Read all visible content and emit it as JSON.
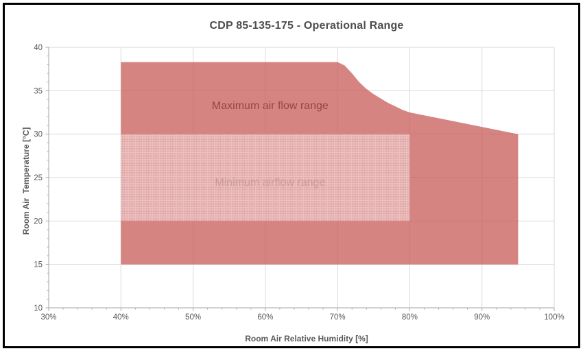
{
  "frame": {
    "border_color": "#000000",
    "background": "#ffffff"
  },
  "chart_data": {
    "type": "area",
    "title": "CDP 85-135-175 - Operational Range",
    "xlabel": "Room Air Relative Humidity [%]",
    "ylabel": "Room Air  Temperature [°C]",
    "xlim": [
      30,
      100
    ],
    "ylim": [
      10,
      40
    ],
    "x_tick_values": [
      30,
      40,
      50,
      60,
      70,
      80,
      90,
      100
    ],
    "x_tick_labels": [
      "30%",
      "40%",
      "50%",
      "60%",
      "70%",
      "80%",
      "90%",
      "100%"
    ],
    "y_tick_values": [
      10,
      15,
      20,
      25,
      30,
      35,
      40
    ],
    "y_tick_labels": [
      "10",
      "15",
      "20",
      "25",
      "30",
      "35",
      "40"
    ],
    "x_minor_step": 2,
    "y_minor_step": 1,
    "grid": "on",
    "legend_position": "none",
    "series": [
      {
        "name": "Maximum air flow range",
        "label": "Maximum air flow range",
        "label_x": 60,
        "label_y": 33.8,
        "fill": "#c65552",
        "fill_opacity": 0.72,
        "points": [
          [
            40,
            15
          ],
          [
            40,
            38.3
          ],
          [
            70,
            38.3
          ],
          [
            71,
            37.9
          ],
          [
            72,
            37.0
          ],
          [
            73,
            36.0
          ],
          [
            74,
            35.2
          ],
          [
            75,
            34.6
          ],
          [
            76,
            34.1
          ],
          [
            77,
            33.6
          ],
          [
            78,
            33.2
          ],
          [
            79,
            32.8
          ],
          [
            80,
            32.5
          ],
          [
            95,
            30
          ],
          [
            95,
            15
          ]
        ]
      },
      {
        "name": "Minimum airflow range",
        "label": "Minimum airflow range",
        "label_x": 60,
        "label_y": 24.9,
        "pattern": "dots",
        "pattern_base": "rgba(255,255,255,0.50)",
        "pattern_dot": "rgba(192,80,77,0.35)",
        "points": [
          [
            40,
            20
          ],
          [
            40,
            30
          ],
          [
            80,
            30
          ],
          [
            80,
            20
          ]
        ]
      }
    ],
    "colors": {
      "grid": "#d9d9d9",
      "axis": "#a6a6a6",
      "tick_text": "#595959",
      "title_text": "#4d4d4d",
      "axis_title_text": "#595959",
      "region_label_text": "#1c1c1c"
    }
  }
}
